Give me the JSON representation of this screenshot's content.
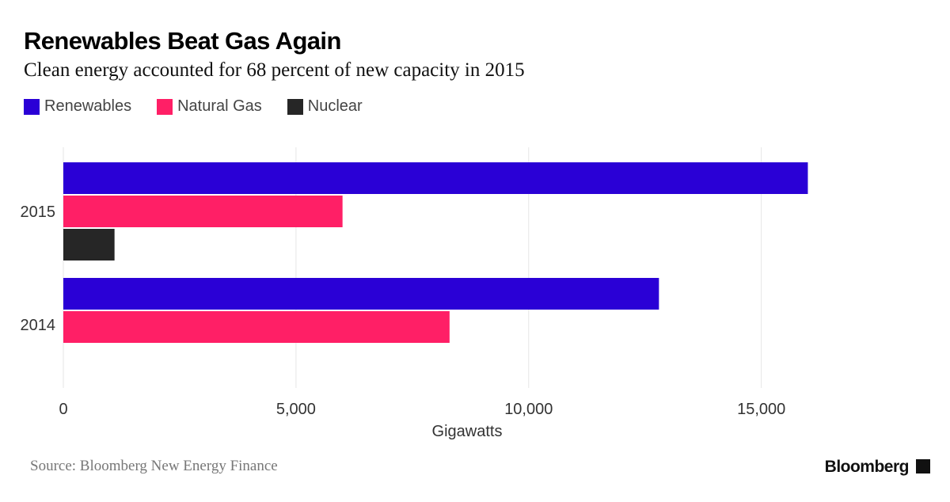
{
  "header": {
    "title": "Renewables Beat Gas Again",
    "subtitle": "Clean energy accounted for 68 percent of new capacity in 2015"
  },
  "footer": {
    "source": "Source: Bloomberg New Energy Finance",
    "brand": "Bloomberg",
    "brand_icon": "bloomberg-terminal-icon"
  },
  "colors": {
    "renewables": "#2a00d6",
    "natural_gas": "#ff1f66",
    "nuclear": "#262626",
    "grid": "#e6e6e6",
    "axis_text": "#333333"
  },
  "chart_data": {
    "type": "bar",
    "orientation": "horizontal",
    "title": "Renewables Beat Gas Again",
    "subtitle": "Clean energy accounted for 68 percent of new capacity in 2015",
    "categories": [
      "2015",
      "2014"
    ],
    "series": [
      {
        "name": "Renewables",
        "color": "#2a00d6",
        "values": [
          16000,
          12800
        ]
      },
      {
        "name": "Natural Gas",
        "color": "#ff1f66",
        "values": [
          6000,
          8300
        ]
      },
      {
        "name": "Nuclear",
        "color": "#262626",
        "values": [
          1100,
          null
        ]
      }
    ],
    "xlabel": "Gigawatts",
    "ylabel": "",
    "xlim": [
      0,
      18000
    ],
    "xticks": [
      0,
      5000,
      10000,
      15000
    ],
    "xtick_labels": [
      "0",
      "5,000",
      "10,000",
      "15,000"
    ],
    "grid": true,
    "legend": "top-left"
  }
}
